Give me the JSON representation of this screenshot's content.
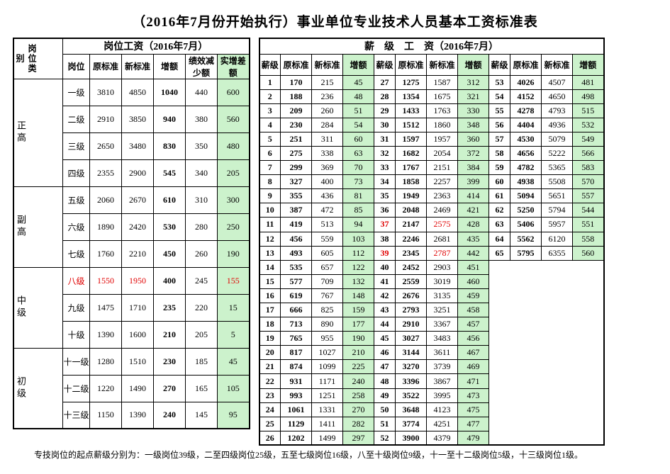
{
  "title": "（2016年7月份开始执行）事业单位专业技术人员基本工资标准表",
  "left": {
    "top_header_cat": "岗位类别",
    "top_header_main": "岗位工资（2016年7月）",
    "sub_headers": [
      "岗位",
      "原标准",
      "新标准",
      "增额",
      "绩效减少额",
      "实增差额"
    ],
    "categories": [
      {
        "label": "正高",
        "rows": [
          {
            "grade": "一级",
            "old": 3810,
            "new": 4850,
            "inc": 1040,
            "dec": 440,
            "net": 600,
            "red": false
          },
          {
            "grade": "二级",
            "old": 2910,
            "new": 3850,
            "inc": 940,
            "dec": 380,
            "net": 560,
            "red": false
          },
          {
            "grade": "三级",
            "old": 2650,
            "new": 3480,
            "inc": 830,
            "dec": 350,
            "net": 480,
            "red": false
          },
          {
            "grade": "四级",
            "old": 2355,
            "new": 2900,
            "inc": 545,
            "dec": 340,
            "net": 205,
            "red": false
          }
        ]
      },
      {
        "label": "副高",
        "rows": [
          {
            "grade": "五级",
            "old": 2060,
            "new": 2670,
            "inc": 610,
            "dec": 310,
            "net": 300,
            "red": false
          },
          {
            "grade": "六级",
            "old": 1890,
            "new": 2420,
            "inc": 530,
            "dec": 280,
            "net": 250,
            "red": false
          },
          {
            "grade": "七级",
            "old": 1760,
            "new": 2210,
            "inc": 450,
            "dec": 260,
            "net": 190,
            "red": false
          }
        ]
      },
      {
        "label": "中级",
        "rows": [
          {
            "grade": "八级",
            "old": 1550,
            "new": 1950,
            "inc": 400,
            "dec": 245,
            "net": 155,
            "red": true
          },
          {
            "grade": "九级",
            "old": 1475,
            "new": 1710,
            "inc": 235,
            "dec": 220,
            "net": 15,
            "red": false
          },
          {
            "grade": "十级",
            "old": 1390,
            "new": 1600,
            "inc": 210,
            "dec": 205,
            "net": 5,
            "red": false
          }
        ]
      },
      {
        "label": "初级",
        "rows": [
          {
            "grade": "十一级",
            "old": 1280,
            "new": 1510,
            "inc": 230,
            "dec": 185,
            "net": 45,
            "red": false
          },
          {
            "grade": "十二级",
            "old": 1220,
            "new": 1490,
            "inc": 270,
            "dec": 165,
            "net": 105,
            "red": false
          },
          {
            "grade": "十三级",
            "old": 1150,
            "new": 1390,
            "inc": 240,
            "dec": 145,
            "net": 95,
            "red": false
          }
        ]
      }
    ]
  },
  "right": {
    "top_header": "薪　级　工　资（2016年7月）",
    "sub_headers": [
      "薪级",
      "原标准",
      "新标准",
      "增额"
    ],
    "blockA": [
      {
        "lvl": 1,
        "old": 170,
        "new": 215,
        "inc": 45
      },
      {
        "lvl": 2,
        "old": 188,
        "new": 236,
        "inc": 48
      },
      {
        "lvl": 3,
        "old": 209,
        "new": 260,
        "inc": 51
      },
      {
        "lvl": 4,
        "old": 230,
        "new": 284,
        "inc": 54
      },
      {
        "lvl": 5,
        "old": 251,
        "new": 311,
        "inc": 60
      },
      {
        "lvl": 6,
        "old": 275,
        "new": 338,
        "inc": 63
      },
      {
        "lvl": 7,
        "old": 299,
        "new": 369,
        "inc": 70
      },
      {
        "lvl": 8,
        "old": 327,
        "new": 400,
        "inc": 73
      },
      {
        "lvl": 9,
        "old": 355,
        "new": 436,
        "inc": 81
      },
      {
        "lvl": 10,
        "old": 387,
        "new": 472,
        "inc": 85
      },
      {
        "lvl": 11,
        "old": 419,
        "new": 513,
        "inc": 94
      },
      {
        "lvl": 12,
        "old": 456,
        "new": 559,
        "inc": 103
      },
      {
        "lvl": 13,
        "old": 493,
        "new": 605,
        "inc": 112
      },
      {
        "lvl": 14,
        "old": 535,
        "new": 657,
        "inc": 122
      },
      {
        "lvl": 15,
        "old": 577,
        "new": 709,
        "inc": 132
      },
      {
        "lvl": 16,
        "old": 619,
        "new": 767,
        "inc": 148
      },
      {
        "lvl": 17,
        "old": 666,
        "new": 825,
        "inc": 159
      },
      {
        "lvl": 18,
        "old": 713,
        "new": 890,
        "inc": 177
      },
      {
        "lvl": 19,
        "old": 765,
        "new": 955,
        "inc": 190
      },
      {
        "lvl": 20,
        "old": 817,
        "new": 1027,
        "inc": 210
      },
      {
        "lvl": 21,
        "old": 874,
        "new": 1099,
        "inc": 225
      },
      {
        "lvl": 22,
        "old": 931,
        "new": 1171,
        "inc": 240
      },
      {
        "lvl": 23,
        "old": 993,
        "new": 1251,
        "inc": 258
      },
      {
        "lvl": 24,
        "old": 1061,
        "new": 1331,
        "inc": 270
      },
      {
        "lvl": 25,
        "old": 1129,
        "new": 1411,
        "inc": 282
      },
      {
        "lvl": 26,
        "old": 1202,
        "new": 1499,
        "inc": 297
      }
    ],
    "blockB": [
      {
        "lvl": 27,
        "old": 1275,
        "new": 1587,
        "inc": 312
      },
      {
        "lvl": 28,
        "old": 1354,
        "new": 1675,
        "inc": 321
      },
      {
        "lvl": 29,
        "old": 1433,
        "new": 1763,
        "inc": 330
      },
      {
        "lvl": 30,
        "old": 1512,
        "new": 1860,
        "inc": 348
      },
      {
        "lvl": 31,
        "old": 1597,
        "new": 1957,
        "inc": 360
      },
      {
        "lvl": 32,
        "old": 1682,
        "new": 2054,
        "inc": 372
      },
      {
        "lvl": 33,
        "old": 1767,
        "new": 2151,
        "inc": 384
      },
      {
        "lvl": 34,
        "old": 1858,
        "new": 2257,
        "inc": 399
      },
      {
        "lvl": 35,
        "old": 1949,
        "new": 2363,
        "inc": 414
      },
      {
        "lvl": 36,
        "old": 2048,
        "new": 2469,
        "inc": 421
      },
      {
        "lvl": 37,
        "old": 2147,
        "new": 2575,
        "inc": 428,
        "red": true
      },
      {
        "lvl": 38,
        "old": 2246,
        "new": 2681,
        "inc": 435
      },
      {
        "lvl": 39,
        "old": 2345,
        "new": 2787,
        "inc": 442,
        "red": true
      },
      {
        "lvl": 40,
        "old": 2452,
        "new": 2903,
        "inc": 451
      },
      {
        "lvl": 41,
        "old": 2559,
        "new": 3019,
        "inc": 460
      },
      {
        "lvl": 42,
        "old": 2676,
        "new": 3135,
        "inc": 459
      },
      {
        "lvl": 43,
        "old": 2793,
        "new": 3251,
        "inc": 458
      },
      {
        "lvl": 44,
        "old": 2910,
        "new": 3367,
        "inc": 457
      },
      {
        "lvl": 45,
        "old": 3027,
        "new": 3483,
        "inc": 456
      },
      {
        "lvl": 46,
        "old": 3144,
        "new": 3611,
        "inc": 467
      },
      {
        "lvl": 47,
        "old": 3270,
        "new": 3739,
        "inc": 469
      },
      {
        "lvl": 48,
        "old": 3396,
        "new": 3867,
        "inc": 471
      },
      {
        "lvl": 49,
        "old": 3522,
        "new": 3995,
        "inc": 473
      },
      {
        "lvl": 50,
        "old": 3648,
        "new": 4123,
        "inc": 475
      },
      {
        "lvl": 51,
        "old": 3774,
        "new": 4251,
        "inc": 477
      },
      {
        "lvl": 52,
        "old": 3900,
        "new": 4379,
        "inc": 479
      }
    ],
    "blockC": [
      {
        "lvl": 53,
        "old": 4026,
        "new": 4507,
        "inc": 481
      },
      {
        "lvl": 54,
        "old": 4152,
        "new": 4650,
        "inc": 498
      },
      {
        "lvl": 55,
        "old": 4278,
        "new": 4793,
        "inc": 515
      },
      {
        "lvl": 56,
        "old": 4404,
        "new": 4936,
        "inc": 532
      },
      {
        "lvl": 57,
        "old": 4530,
        "new": 5079,
        "inc": 549
      },
      {
        "lvl": 58,
        "old": 4656,
        "new": 5222,
        "inc": 566
      },
      {
        "lvl": 59,
        "old": 4782,
        "new": 5365,
        "inc": 583
      },
      {
        "lvl": 60,
        "old": 4938,
        "new": 5508,
        "inc": 570
      },
      {
        "lvl": 61,
        "old": 5094,
        "new": 5651,
        "inc": 557
      },
      {
        "lvl": 62,
        "old": 5250,
        "new": 5794,
        "inc": 544
      },
      {
        "lvl": 63,
        "old": 5406,
        "new": 5957,
        "inc": 551
      },
      {
        "lvl": 64,
        "old": 5562,
        "new": 6120,
        "inc": 558
      },
      {
        "lvl": 65,
        "old": 5795,
        "new": 6355,
        "inc": 560
      }
    ]
  },
  "footnote": "专技岗位的起点薪级分别为：一级岗位39级，二至四级岗位25级，五至七级岗位16级，八至十级岗位9级，十一至十二级岗位5级，十三级岗位1级。",
  "colors": {
    "green": "#ccf2cc",
    "red": "#e00000",
    "black": "#000000",
    "white": "#ffffff"
  }
}
